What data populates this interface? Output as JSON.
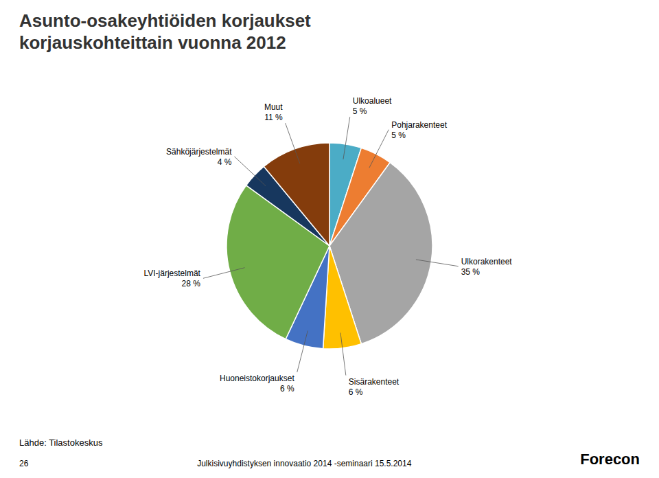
{
  "chart_data": {
    "type": "pie",
    "title": "Asunto-osakeyhtiöiden korjaukset\nkorjauskohteittain vuonna 2012",
    "categories": [
      "Ulkoalueet",
      "Pohjarakenteet",
      "Ulkorakenteet",
      "Sisärakenteet",
      "Huoneistokorjaukset",
      "LVI-järjestelmät",
      "Sähköjärjestelmät",
      "Muut"
    ],
    "values": [
      5,
      5,
      35,
      6,
      6,
      28,
      4,
      11
    ],
    "value_labels": [
      "5 %",
      "5 %",
      "35 %",
      "6 %",
      "6 %",
      "28 %",
      "4 %",
      "11 %"
    ],
    "colors": [
      "#4BACC6",
      "#ED7D31",
      "#A5A5A5",
      "#FFC000",
      "#4472C4",
      "#70AD47",
      "#17375E",
      "#843C0C"
    ],
    "data_labels": true,
    "annotations": [
      "Lähde: Tilastokeskus",
      "26",
      "Julkisivuyhdistyksen innovaatio 2014 -seminaari 15.5.2014",
      "Forecon"
    ]
  }
}
